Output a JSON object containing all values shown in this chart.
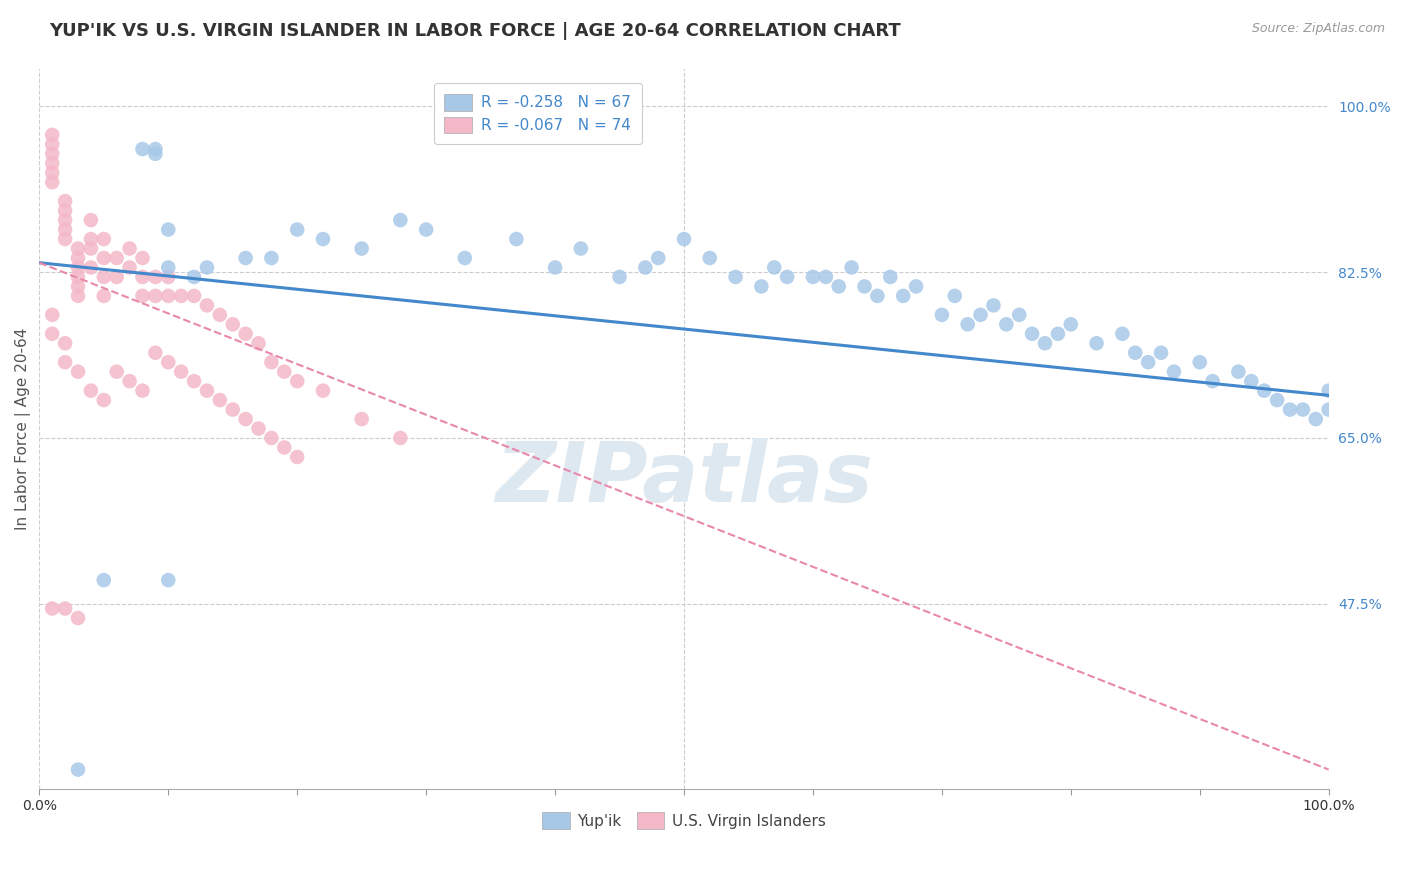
{
  "title": "YUP'IK VS U.S. VIRGIN ISLANDER IN LABOR FORCE | AGE 20-64 CORRELATION CHART",
  "source": "Source: ZipAtlas.com",
  "ylabel": "In Labor Force | Age 20-64",
  "legend_labels": [
    "Yup'ik",
    "U.S. Virgin Islanders"
  ],
  "legend_r1": "R = -0.258",
  "legend_n1": "N = 67",
  "legend_r2": "R = -0.067",
  "legend_n2": "N = 74",
  "color_blue": "#a8c8e8",
  "color_pink": "#f4b8c8",
  "color_blue_line": "#4488cc",
  "color_pink_line": "#e888aa",
  "color_blue_dark": "#3366aa",
  "watermark": "ZIPatlas",
  "background_color": "#ffffff",
  "xlim": [
    0.0,
    1.0
  ],
  "ylim": [
    0.28,
    1.04
  ],
  "y_ticks": [
    1.0,
    0.825,
    0.65,
    0.475
  ],
  "y_tick_labels": [
    "100.0%",
    "82.5%",
    "65.0%",
    "47.5%"
  ],
  "x_ticks": [
    0.0,
    0.1,
    0.2,
    0.3,
    0.4,
    0.5,
    0.6,
    0.7,
    0.8,
    0.9,
    1.0
  ],
  "blue_line_x": [
    0.0,
    1.0
  ],
  "blue_line_y": [
    0.835,
    0.695
  ],
  "pink_line_x": [
    0.0,
    1.0
  ],
  "pink_line_y": [
    0.835,
    0.3
  ],
  "grid_color": "#cccccc",
  "right_label_color": "#4488cc",
  "watermark_color": "#dde8f0",
  "title_fontsize": 13,
  "axis_label_fontsize": 11,
  "tick_fontsize": 10,
  "legend_fontsize": 11,
  "source_fontsize": 9,
  "blue_x": [
    0.03,
    0.05,
    0.08,
    0.09,
    0.09,
    0.1,
    0.1,
    0.12,
    0.13,
    0.16,
    0.18,
    0.2,
    0.22,
    0.25,
    0.28,
    0.3,
    0.33,
    0.37,
    0.4,
    0.42,
    0.45,
    0.47,
    0.48,
    0.5,
    0.52,
    0.54,
    0.56,
    0.57,
    0.58,
    0.6,
    0.61,
    0.62,
    0.63,
    0.64,
    0.65,
    0.66,
    0.67,
    0.68,
    0.7,
    0.71,
    0.72,
    0.73,
    0.74,
    0.75,
    0.76,
    0.77,
    0.78,
    0.79,
    0.8,
    0.82,
    0.84,
    0.85,
    0.86,
    0.87,
    0.88,
    0.9,
    0.91,
    0.93,
    0.94,
    0.95,
    0.96,
    0.97,
    0.98,
    0.99,
    1.0,
    1.0,
    0.1
  ],
  "blue_y": [
    0.3,
    0.5,
    0.955,
    0.955,
    0.95,
    0.87,
    0.83,
    0.82,
    0.83,
    0.84,
    0.84,
    0.87,
    0.86,
    0.85,
    0.88,
    0.87,
    0.84,
    0.86,
    0.83,
    0.85,
    0.82,
    0.83,
    0.84,
    0.86,
    0.84,
    0.82,
    0.81,
    0.83,
    0.82,
    0.82,
    0.82,
    0.81,
    0.83,
    0.81,
    0.8,
    0.82,
    0.8,
    0.81,
    0.78,
    0.8,
    0.77,
    0.78,
    0.79,
    0.77,
    0.78,
    0.76,
    0.75,
    0.76,
    0.77,
    0.75,
    0.76,
    0.74,
    0.73,
    0.74,
    0.72,
    0.73,
    0.71,
    0.72,
    0.71,
    0.7,
    0.69,
    0.68,
    0.68,
    0.67,
    0.68,
    0.7,
    0.5
  ],
  "pink_x": [
    0.01,
    0.01,
    0.01,
    0.01,
    0.01,
    0.01,
    0.02,
    0.02,
    0.02,
    0.02,
    0.02,
    0.03,
    0.03,
    0.03,
    0.03,
    0.03,
    0.03,
    0.04,
    0.04,
    0.04,
    0.04,
    0.05,
    0.05,
    0.05,
    0.05,
    0.06,
    0.06,
    0.07,
    0.07,
    0.08,
    0.08,
    0.08,
    0.09,
    0.09,
    0.1,
    0.1,
    0.11,
    0.12,
    0.13,
    0.14,
    0.15,
    0.16,
    0.17,
    0.18,
    0.19,
    0.2,
    0.22,
    0.25,
    0.28,
    0.01,
    0.01,
    0.02,
    0.02,
    0.03,
    0.04,
    0.05,
    0.06,
    0.07,
    0.08,
    0.09,
    0.1,
    0.11,
    0.12,
    0.13,
    0.14,
    0.15,
    0.16,
    0.17,
    0.18,
    0.19,
    0.2,
    0.01,
    0.02,
    0.03
  ],
  "pink_y": [
    0.97,
    0.96,
    0.95,
    0.94,
    0.93,
    0.92,
    0.9,
    0.89,
    0.88,
    0.87,
    0.86,
    0.85,
    0.84,
    0.83,
    0.82,
    0.81,
    0.8,
    0.88,
    0.86,
    0.85,
    0.83,
    0.86,
    0.84,
    0.82,
    0.8,
    0.84,
    0.82,
    0.85,
    0.83,
    0.82,
    0.8,
    0.84,
    0.82,
    0.8,
    0.82,
    0.8,
    0.8,
    0.8,
    0.79,
    0.78,
    0.77,
    0.76,
    0.75,
    0.73,
    0.72,
    0.71,
    0.7,
    0.67,
    0.65,
    0.78,
    0.76,
    0.75,
    0.73,
    0.72,
    0.7,
    0.69,
    0.72,
    0.71,
    0.7,
    0.74,
    0.73,
    0.72,
    0.71,
    0.7,
    0.69,
    0.68,
    0.67,
    0.66,
    0.65,
    0.64,
    0.63,
    0.47,
    0.47,
    0.46
  ]
}
